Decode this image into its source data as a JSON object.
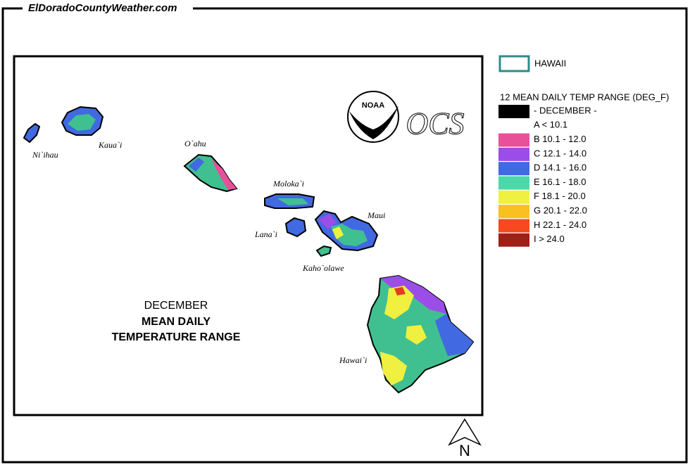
{
  "header": {
    "title": "ElDoradoCountyWeather.com"
  },
  "map": {
    "islands": [
      "Ni`ihau",
      "Kaua`i",
      "O`ahu",
      "Moloka`i",
      "Lana`i",
      "Maui",
      "Kaho`olawe",
      "Hawai`i"
    ],
    "logos": {
      "noaa": "NOAA",
      "ocs": "OCS"
    },
    "caption": [
      "DECEMBER",
      "MEAN DAILY",
      "TEMPERATURE RANGE"
    ],
    "north": "N"
  },
  "legend": {
    "region": {
      "label": "HAWAII",
      "border": "#2e8b8b"
    },
    "title": "12 MEAN DAILY TEMP RANGE (DEG_F)",
    "items": [
      {
        "label": "- DECEMBER -",
        "color": "#000000"
      },
      {
        "label": "A < 10.1",
        "color": "#ffffff"
      },
      {
        "label": "B 10.1 - 12.0",
        "color": "#e8509a"
      },
      {
        "label": "C 12.1 - 14.0",
        "color": "#9b4de8"
      },
      {
        "label": "D 14.1 - 16.0",
        "color": "#4169e1"
      },
      {
        "label": "E 16.1 - 18.0",
        "color": "#4cd8a8"
      },
      {
        "label": "F 18.1 - 20.0",
        "color": "#f0f040"
      },
      {
        "label": "G 20.1 - 22.0",
        "color": "#f8c020"
      },
      {
        "label": "H 22.1 - 24.0",
        "color": "#f84820"
      },
      {
        "label": "I > 24.0",
        "color": "#a02018"
      }
    ]
  }
}
